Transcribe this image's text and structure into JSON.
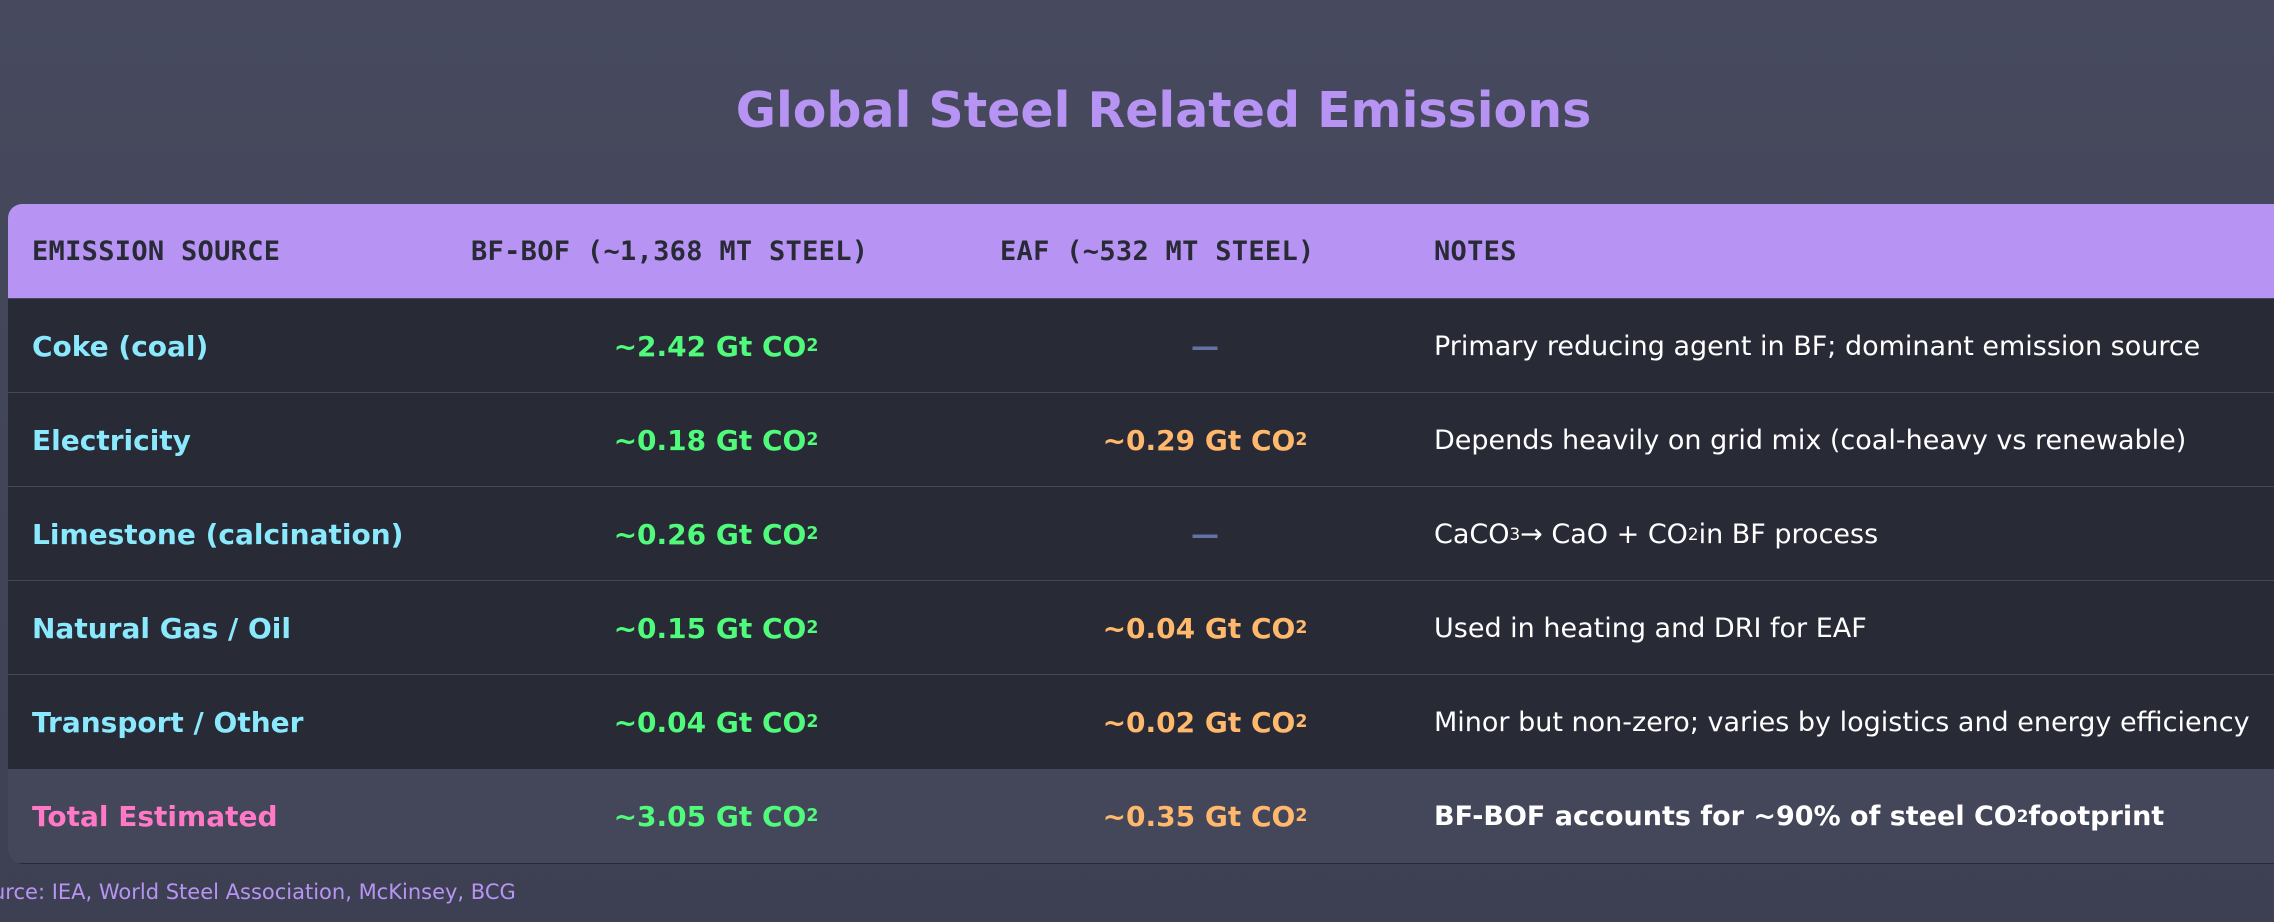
{
  "title": "Global Steel Related Emissions",
  "table": {
    "headers": [
      "EMISSION SOURCE",
      "BF-BOF (~1,368 MT STEEL)",
      "EAF (~532 MT STEEL)",
      "NOTES"
    ],
    "rows": [
      {
        "source": "Coke (coal)",
        "bfbof": "~2.42 Gt CO",
        "bfbof_sub": "2",
        "eaf": "—",
        "eaf_sub": "",
        "note": "Primary reducing agent in BF; dominant emission source"
      },
      {
        "source": "Electricity",
        "bfbof": "~0.18 Gt CO",
        "bfbof_sub": "2",
        "eaf": "~0.29 Gt CO",
        "eaf_sub": "2",
        "note": "Depends heavily on grid mix (coal-heavy vs renewable)"
      },
      {
        "source": "Limestone (calcination)",
        "bfbof": "~0.26 Gt CO",
        "bfbof_sub": "2",
        "eaf": "—",
        "eaf_sub": "",
        "note_parts": [
          "CaCO",
          "3",
          " → CaO + CO",
          "2",
          " in BF process"
        ]
      },
      {
        "source": "Natural Gas / Oil",
        "bfbof": "~0.15 Gt CO",
        "bfbof_sub": "2",
        "eaf": "~0.04 Gt CO",
        "eaf_sub": "2",
        "note": "Used in heating and DRI for EAF"
      },
      {
        "source": "Transport / Other",
        "bfbof": "~0.04 Gt CO",
        "bfbof_sub": "2",
        "eaf": "~0.02 Gt CO",
        "eaf_sub": "2",
        "note": "Minor but non-zero; varies by logistics and energy efficiency"
      }
    ],
    "total": {
      "source": "Total Estimated",
      "bfbof": "~3.05 Gt CO",
      "bfbof_sub": "2",
      "eaf": "~0.35 Gt CO",
      "eaf_sub": "2",
      "note_parts": [
        "BF-BOF accounts for ~90% of steel CO",
        "2",
        " footprint"
      ]
    }
  },
  "source_text": "urce: IEA, World Steel Association, McKinsey, BCG",
  "colors": {
    "background": "#444759",
    "accent": "#b794f4",
    "source_text": "#8be9fd",
    "bfbof_value": "#50fa7b",
    "eaf_value": "#ffb86c",
    "total_label": "#ff79c6",
    "dash": "#6272a4"
  }
}
